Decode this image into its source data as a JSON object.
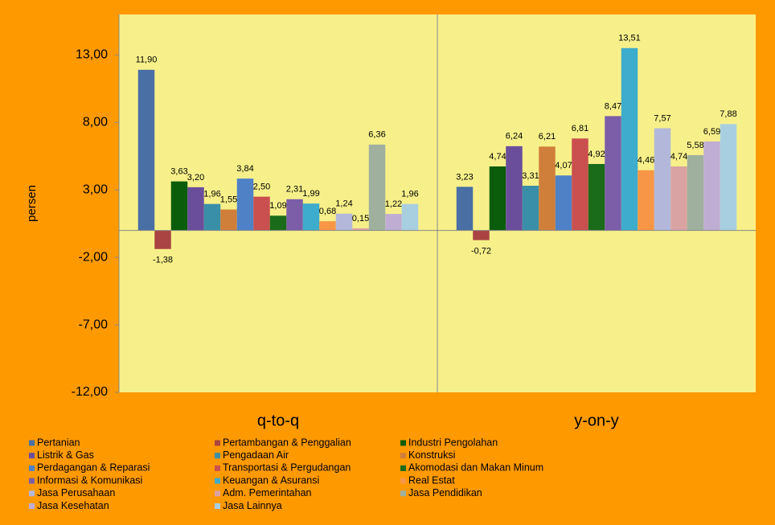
{
  "chart_data": {
    "type": "bar",
    "ylabel": "persen",
    "categories": [
      "q-to-q",
      "y-on-y"
    ],
    "ylim": [
      -12,
      16
    ],
    "yticks": [
      {
        "value": -12,
        "label": "-12,00"
      },
      {
        "value": -7,
        "label": "-7,00"
      },
      {
        "value": -2,
        "label": "-2,00"
      },
      {
        "value": 3,
        "label": "3,00"
      },
      {
        "value": 8,
        "label": "8,00"
      },
      {
        "value": 13,
        "label": "13,00"
      }
    ],
    "series": [
      {
        "name": "Pertanian",
        "color": "#4a6fa5",
        "values": [
          11.9,
          3.23
        ],
        "value_labels": [
          "11,90",
          "3,23"
        ]
      },
      {
        "name": "Pertambangan & Penggalian",
        "color": "#a94442",
        "values": [
          -1.38,
          -0.72
        ],
        "value_labels": [
          "-1,38",
          "-0,72"
        ]
      },
      {
        "name": "Industri Pengolahan",
        "color": "#0b5d0b",
        "values": [
          3.63,
          4.74
        ],
        "value_labels": [
          "3,63",
          "4,74"
        ]
      },
      {
        "name": "Listrik & Gas",
        "color": "#6b4e9b",
        "values": [
          3.2,
          6.24
        ],
        "value_labels": [
          "3,20",
          "6,24"
        ]
      },
      {
        "name": "Pengadaan Air",
        "color": "#3a8fa8",
        "values": [
          1.96,
          3.31
        ],
        "value_labels": [
          "1,96",
          "3,31"
        ]
      },
      {
        "name": "Konstruksi",
        "color": "#d07f3a",
        "values": [
          1.55,
          6.21
        ],
        "value_labels": [
          "1,55",
          "6,21"
        ]
      },
      {
        "name": "Perdagangan & Reparasi",
        "color": "#4f81c7",
        "values": [
          3.84,
          4.07
        ],
        "value_labels": [
          "3,84",
          "4,07"
        ]
      },
      {
        "name": "Transportasi & Pergudangan",
        "color": "#c9504f",
        "values": [
          2.5,
          6.81
        ],
        "value_labels": [
          "2,50",
          "6,81"
        ]
      },
      {
        "name": "Akomodasi dan Makan Minum",
        "color": "#1a6b1a",
        "values": [
          1.09,
          4.92
        ],
        "value_labels": [
          "1,09",
          "4,92"
        ]
      },
      {
        "name": "Informasi & Komunikasi",
        "color": "#7b5ea7",
        "values": [
          2.31,
          8.47
        ],
        "value_labels": [
          "2,31",
          "8,47"
        ]
      },
      {
        "name": "Keuangan & Asuransi",
        "color": "#3eaccc",
        "values": [
          1.99,
          13.51
        ],
        "value_labels": [
          "1,99",
          "13,51"
        ]
      },
      {
        "name": "Real Estat",
        "color": "#f79646",
        "values": [
          0.68,
          4.46
        ],
        "value_labels": [
          "0,68",
          "4,46"
        ]
      },
      {
        "name": "Jasa Perusahaan",
        "color": "#b3b8db",
        "values": [
          1.24,
          7.57
        ],
        "value_labels": [
          "1,24",
          "7,57"
        ]
      },
      {
        "name": "Adm. Pemerintahan",
        "color": "#d9a3a3",
        "values": [
          0.15,
          4.74
        ],
        "value_labels": [
          "0,15",
          "4,74"
        ]
      },
      {
        "name": "Jasa Pendidikan",
        "color": "#9fb09f",
        "values": [
          6.36,
          5.58
        ],
        "value_labels": [
          "6,36",
          "5,58"
        ]
      },
      {
        "name": "Jasa Kesehatan",
        "color": "#bfadd4",
        "values": [
          1.22,
          6.59
        ],
        "value_labels": [
          "1,22",
          "6,59"
        ]
      },
      {
        "name": "Jasa Lainnya",
        "color": "#a8cfe0",
        "values": [
          1.96,
          7.88
        ],
        "value_labels": [
          "1,96",
          "7,88"
        ]
      }
    ]
  }
}
